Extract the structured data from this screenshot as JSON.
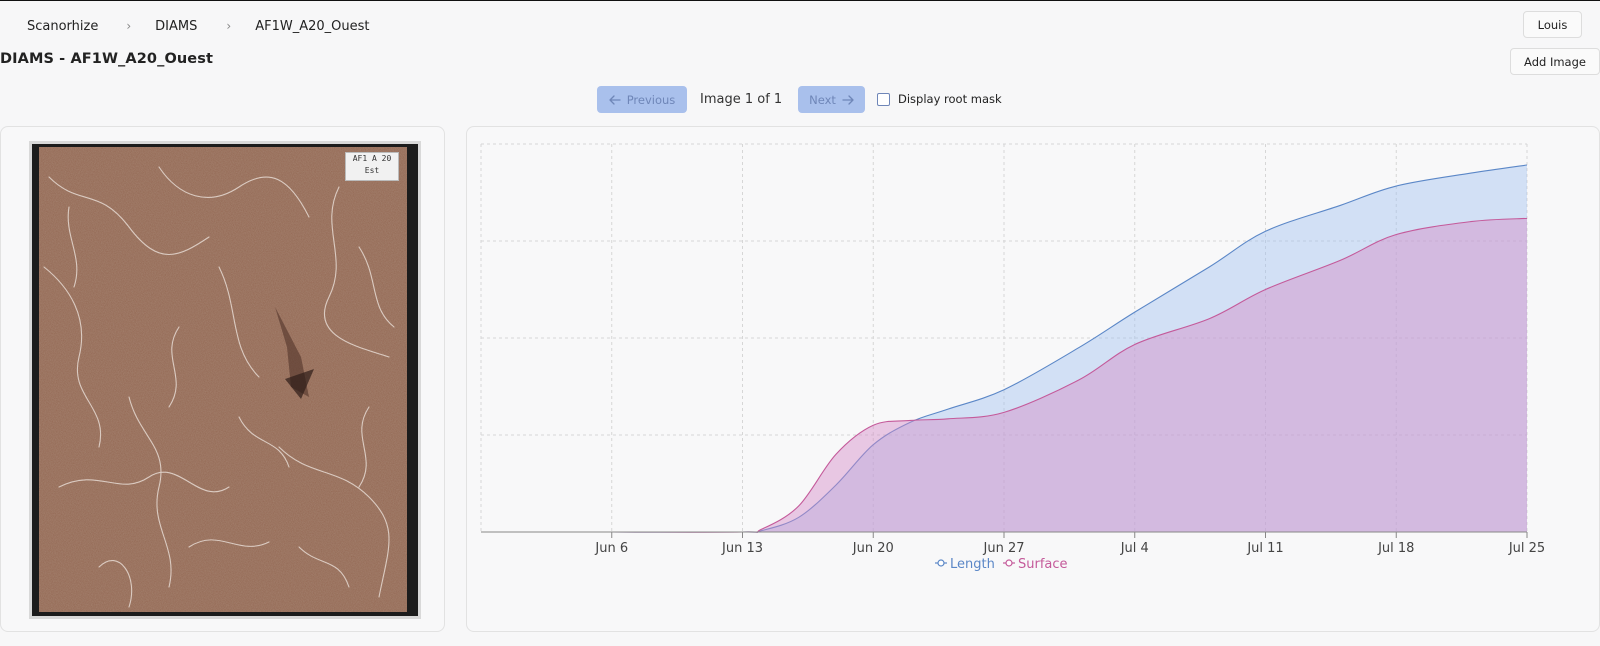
{
  "breadcrumb": {
    "items": [
      "Scanorhize",
      "DIAMS",
      "AF1W_A20_Ouest"
    ],
    "separator": "›"
  },
  "header": {
    "user_label": "Louis",
    "title": "DIAMS - AF1W_A20_Ouest",
    "add_image_label": "Add Image"
  },
  "navigator": {
    "previous_label": "Previous",
    "next_label": "Next",
    "counter": "Image 1 of 1",
    "mask_label": "Display root mask",
    "mask_checked": false,
    "prev_icon": "arrow-left",
    "next_icon": "arrow-right"
  },
  "image": {
    "label_line1": "AF1 A 20",
    "label_line2": "Est"
  },
  "colors": {
    "accent": "#a9c0ec",
    "length": "#5b87c7",
    "surface": "#c45a9a"
  },
  "chart_data": {
    "type": "area",
    "x_ticks": [
      "Jun 6",
      "Jun 13",
      "Jun 20",
      "Jun 27",
      "Jul 4",
      "Jul 11",
      "Jul 18",
      "Jul 25"
    ],
    "x": [
      "May 30",
      "Jun 6",
      "Jun 13",
      "Jun 14",
      "Jun 16",
      "Jun 18",
      "Jun 20",
      "Jun 22",
      "Jun 24",
      "Jun 27",
      "Jul 1",
      "Jul 4",
      "Jul 8",
      "Jul 11",
      "Jul 15",
      "Jul 18",
      "Jul 22",
      "Jul 25"
    ],
    "series": [
      {
        "name": "Length",
        "values": [
          0,
          0,
          0,
          0.4,
          4.5,
          14.5,
          27,
          34,
          38,
          44,
          57,
          68,
          82,
          93,
          101,
          107,
          111,
          113.5
        ]
      },
      {
        "name": "Surface",
        "values": [
          0,
          0,
          0,
          0.8,
          8,
          24,
          33,
          34.5,
          35,
          37,
          47,
          58,
          66,
          75,
          84,
          92,
          96,
          97
        ]
      }
    ],
    "ylim": [
      0,
      120
    ],
    "y_gridlines": 4,
    "grid": true,
    "legend": "bottom"
  }
}
